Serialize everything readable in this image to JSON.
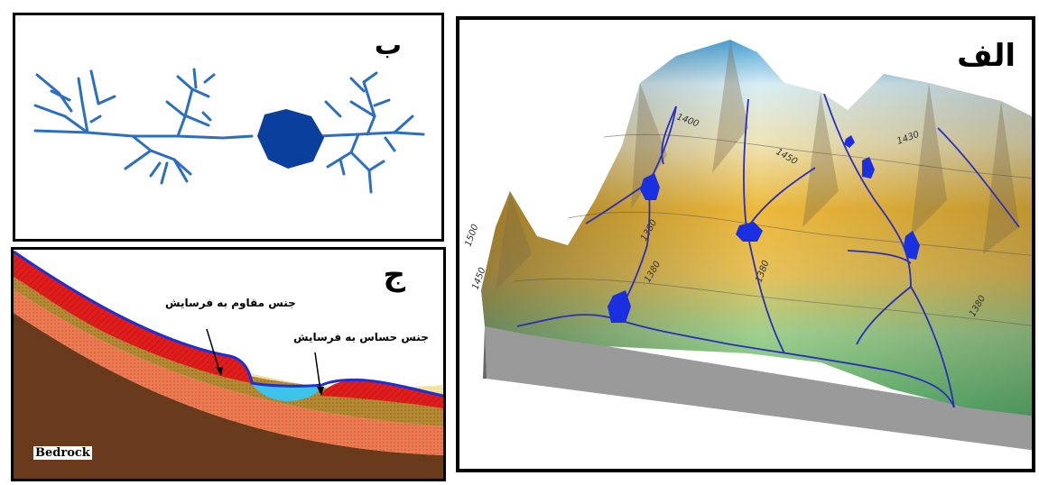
{
  "panels": {
    "b": {
      "label": "ب"
    },
    "c": {
      "label": "ج",
      "annotation_resistant": "جنس مقاوم به فرسایش",
      "annotation_sensitive": "جنس حساس به فرسایش",
      "bedrock_label": "Bedrock"
    },
    "a": {
      "label": "الف",
      "contour_labels": [
        "1400",
        "1450",
        "1430",
        "1380",
        "1380",
        "1380",
        "1500",
        "1450",
        "1380"
      ]
    }
  },
  "colors": {
    "river": "#2c6fc2",
    "lake": "#0a3f9e",
    "resistant_layer": "#e01d1d",
    "sensitive_water": "#3cc3ea",
    "layer_cream": "#f1e8a6",
    "layer_olive": "#b58a32",
    "layer_salmon": "#ef7a52",
    "bedrock": "#6a3a1c",
    "terrain_snow": "#bfe6f2",
    "terrain_yellow": "#f0c23a",
    "terrain_green": "#7bc77c",
    "terrain_grey": "#9a9a9a"
  }
}
